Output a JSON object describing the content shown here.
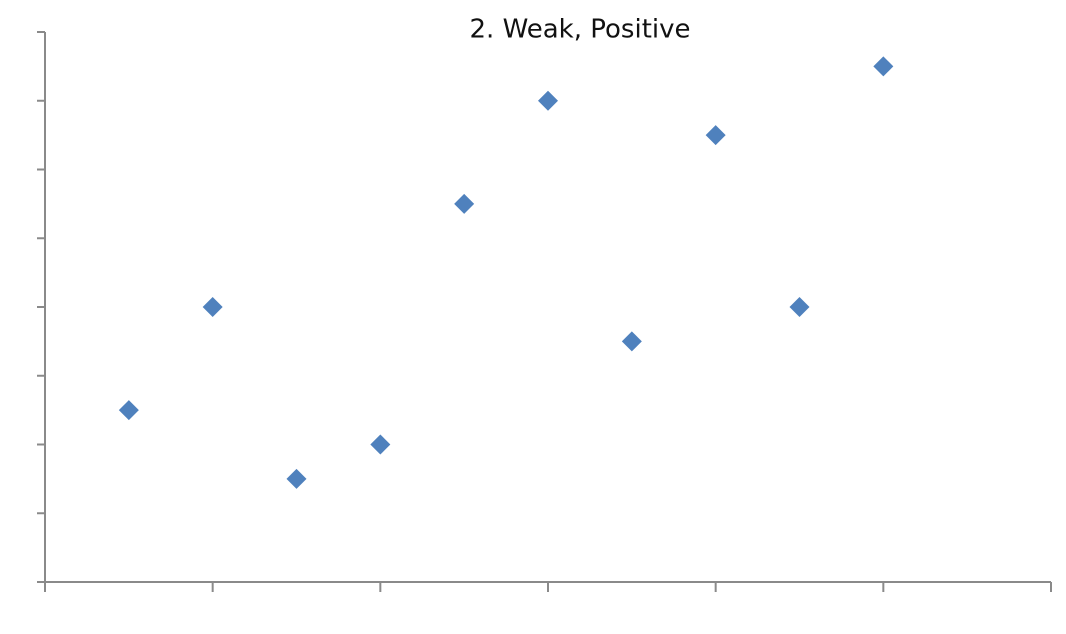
{
  "chart_data": {
    "type": "scatter",
    "title": "2. Weak, Positive",
    "x": [
      1,
      2,
      3,
      4,
      5,
      6,
      7,
      8,
      9,
      10
    ],
    "values": [
      2.5,
      4,
      1.5,
      2,
      5.5,
      7,
      3.5,
      6.5,
      4,
      7.5
    ],
    "color": "#4f81bd",
    "xlim": [
      0,
      12
    ],
    "xticks": [
      0,
      2,
      4,
      6,
      8,
      10,
      12
    ],
    "ylim": [
      0,
      8
    ],
    "yticks": [
      0,
      1,
      2,
      3,
      4,
      5,
      6,
      7,
      8
    ]
  }
}
